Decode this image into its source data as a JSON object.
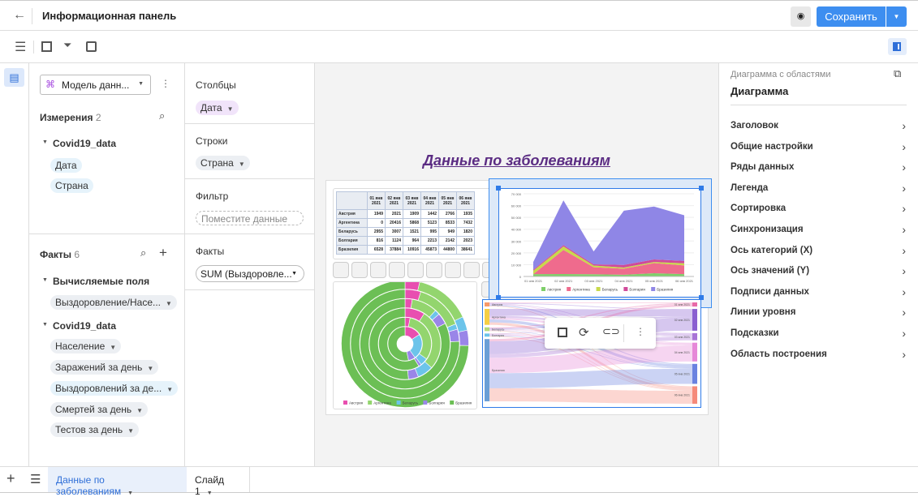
{
  "header": {
    "title": "Информационная панель",
    "save_label": "Сохранить"
  },
  "left": {
    "model_select": "Модель данн...",
    "dimensions_label": "Измерения",
    "dimensions_count": "2",
    "dataset": "Covid19_data",
    "dimensions": [
      "Дата",
      "Страна"
    ],
    "facts_label": "Факты",
    "facts_count": "6",
    "calc_group": "Вычисляемые поля",
    "calc_items": [
      "Выздоровление/Насе..."
    ],
    "fact_group": "Covid19_data",
    "facts": [
      "Население",
      "Заражений за день",
      "Выздоровлений за де...",
      "Смертей за день",
      "Тестов за день"
    ]
  },
  "shelves": {
    "columns_label": "Столбцы",
    "columns_chip": "Дата",
    "rows_label": "Строки",
    "rows_chip": "Страна",
    "filter_label": "Фильтр",
    "filter_placeholder": "Поместите данные",
    "facts_label": "Факты",
    "facts_select": "SUM (Выздоровле..."
  },
  "canvas": {
    "title": "Данные по заболеваниям"
  },
  "right": {
    "subtitle": "Диаграмма с областями",
    "title": "Диаграмма",
    "items": [
      "Заголовок",
      "Общие настройки",
      "Ряды данных",
      "Легенда",
      "Сортировка",
      "Синхронизация",
      "Ось категорий (X)",
      "Ось значений (Y)",
      "Подписи данных",
      "Линии уровня",
      "Подсказки",
      "Область построения"
    ]
  },
  "bottom": {
    "tabs": [
      "Данные по заболеваниям",
      "Слайд 1"
    ]
  },
  "colors": {
    "accent": "#3d8ef0",
    "title": "#5b2c83",
    "austria": "#6cbf5a",
    "argentina": "#ef6b8d",
    "belarus": "#c8d94a",
    "bulgaria": "#d04a9a",
    "brazil": "#8f86e6"
  },
  "chart_data": [
    {
      "type": "table",
      "columns": [
        "01 янв 2021",
        "02 янв 2021",
        "03 янв 2021",
        "04 янв 2021",
        "05 янв 2021",
        "06 янв 2021"
      ],
      "rows": [
        {
          "name": "Австрия",
          "values": [
            1949,
            2021,
            1909,
            1442,
            2766,
            1935
          ]
        },
        {
          "name": "Аргентина",
          "values": [
            0,
            20416,
            5868,
            5123,
            8533,
            7432
          ]
        },
        {
          "name": "Беларусь",
          "values": [
            2955,
            3007,
            1521,
            995,
            949,
            1820
          ]
        },
        {
          "name": "Болгария",
          "values": [
            816,
            1124,
            964,
            2213,
            2142,
            2023
          ]
        },
        {
          "name": "Бразилия",
          "values": [
            6528,
            37884,
            10916,
            45873,
            44800,
            38641
          ]
        }
      ]
    },
    {
      "type": "area",
      "stacked": true,
      "categories": [
        "01 янв 2021",
        "02 янв 2021",
        "03 янв 2021",
        "04 янв 2021",
        "05 янв 2021",
        "06 янв 2021"
      ],
      "ylim": [
        0,
        70000
      ],
      "yticks": [
        "0",
        "10 000",
        "20 000",
        "30 000",
        "40 000",
        "50 000",
        "60 000",
        "70 000"
      ],
      "legend": "bottom",
      "series": [
        {
          "name": "Австрия",
          "color": "#7fcf6a",
          "values": [
            1949,
            2021,
            1909,
            1442,
            2766,
            1935
          ]
        },
        {
          "name": "Аргентина",
          "color": "#ef6b8d",
          "values": [
            0,
            20416,
            5868,
            5123,
            8533,
            7432
          ]
        },
        {
          "name": "Беларусь",
          "color": "#c8d94a",
          "values": [
            2955,
            3007,
            1521,
            995,
            949,
            1820
          ]
        },
        {
          "name": "Болгария",
          "color": "#d04a9a",
          "values": [
            816,
            1124,
            964,
            2213,
            2142,
            2023
          ]
        },
        {
          "name": "Бразилия",
          "color": "#8f86e6",
          "values": [
            6528,
            37884,
            10916,
            45873,
            44800,
            38641
          ]
        }
      ]
    },
    {
      "type": "sunburst",
      "legend": "bottom",
      "series": [
        {
          "name": "Австрия",
          "color": "#e84fb0"
        },
        {
          "name": "Аргентина",
          "color": "#93d56e"
        },
        {
          "name": "Беларусь",
          "color": "#6cc4ea"
        },
        {
          "name": "Болгария",
          "color": "#9a86e8"
        },
        {
          "name": "Бразилия",
          "color": "#6cbf55"
        }
      ]
    },
    {
      "type": "sankey",
      "sources": [
        {
          "name": "Австрия",
          "color": "#f79a6a"
        },
        {
          "name": "Аргентина",
          "color": "#f5cf45"
        },
        {
          "name": "Беларусь",
          "color": "#b5d97a"
        },
        {
          "name": "Болгария",
          "color": "#6cc4ea"
        },
        {
          "name": "Бразилия",
          "color": "#6b9fd6"
        }
      ],
      "targets": [
        {
          "name": "01 янв 2021",
          "color": "#e86aa8"
        },
        {
          "name": "02 янв 2021",
          "color": "#8a5fd0"
        },
        {
          "name": "03 янв 2021",
          "color": "#a873d6"
        },
        {
          "name": "04 янв 2021",
          "color": "#e688d8"
        },
        {
          "name": "05 янв 2021",
          "color": "#6a82e0"
        },
        {
          "name": "06 янв 2021",
          "color": "#f58a7a"
        }
      ]
    }
  ]
}
